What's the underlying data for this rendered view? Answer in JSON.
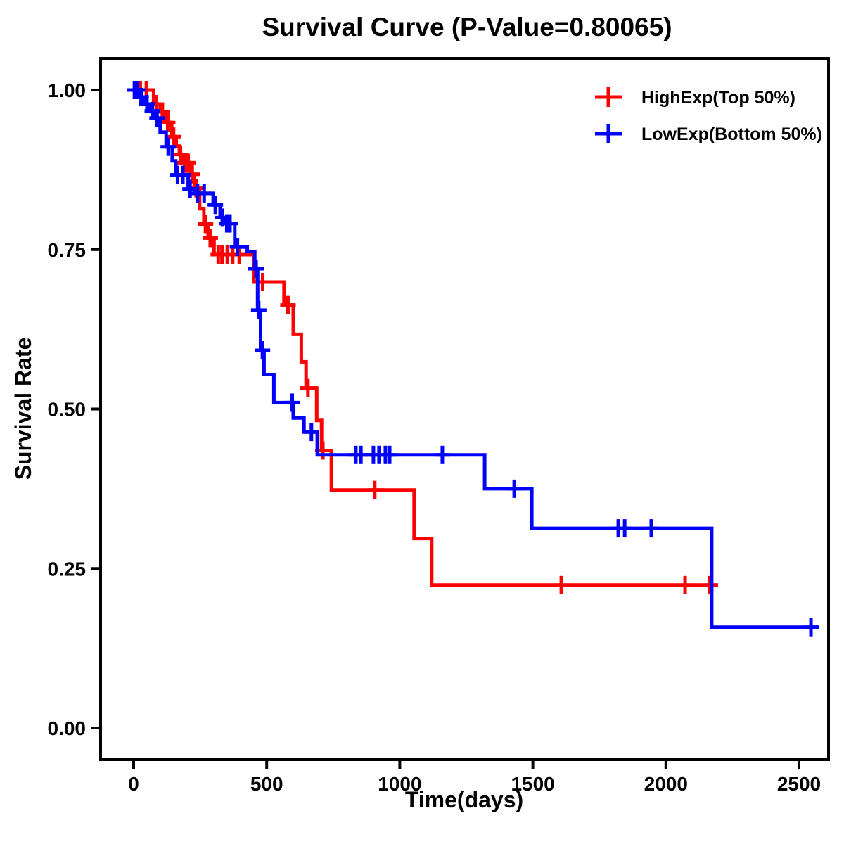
{
  "chart_data": {
    "type": "line",
    "subtype": "kaplan-meier-step-survival",
    "title": "Survival Curve (P-Value=0.80065)",
    "xlabel": "Time(days)",
    "ylabel": "Survival Rate",
    "background": "#FFFFFF",
    "axis_color": "#000000",
    "grid": false,
    "xlim": [
      -125,
      2610
    ],
    "ylim": [
      -0.05,
      1.05
    ],
    "xticks": [
      {
        "value": 0,
        "label": "0"
      },
      {
        "value": 500,
        "label": "500"
      },
      {
        "value": 1000,
        "label": "1000"
      },
      {
        "value": 1500,
        "label": "1500"
      },
      {
        "value": 2000,
        "label": "2000"
      },
      {
        "value": 2500,
        "label": "2500"
      }
    ],
    "yticks": [
      {
        "value": 0.0,
        "label": "0.00"
      },
      {
        "value": 0.25,
        "label": "0.25"
      },
      {
        "value": 0.5,
        "label": "0.50"
      },
      {
        "value": 0.75,
        "label": "0.75"
      },
      {
        "value": 1.0,
        "label": "1.00"
      }
    ],
    "legend": {
      "position": "top-right",
      "marker": "plus-cross"
    },
    "series": [
      {
        "id": "highexp",
        "name": "HighExp(Top 50%)",
        "color": "#FF0000",
        "steps": [
          [
            0,
            1.0
          ],
          [
            75,
            0.978
          ],
          [
            100,
            0.966
          ],
          [
            118,
            0.949
          ],
          [
            143,
            0.927
          ],
          [
            160,
            0.912
          ],
          [
            172,
            0.899
          ],
          [
            185,
            0.886
          ],
          [
            215,
            0.868
          ],
          [
            228,
            0.846
          ],
          [
            248,
            0.814
          ],
          [
            264,
            0.79
          ],
          [
            280,
            0.768
          ],
          [
            302,
            0.742
          ],
          [
            452,
            0.699
          ],
          [
            565,
            0.663
          ],
          [
            600,
            0.617
          ],
          [
            630,
            0.574
          ],
          [
            648,
            0.533
          ],
          [
            688,
            0.482
          ],
          [
            706,
            0.435
          ],
          [
            743,
            0.373
          ],
          [
            1054,
            0.297
          ],
          [
            1120,
            0.224
          ]
        ],
        "end": 2196,
        "censors": [
          [
            25,
            1.0
          ],
          [
            48,
            1.0
          ],
          [
            85,
            0.978
          ],
          [
            108,
            0.966
          ],
          [
            128,
            0.949
          ],
          [
            150,
            0.927
          ],
          [
            176,
            0.899
          ],
          [
            192,
            0.886
          ],
          [
            205,
            0.886
          ],
          [
            220,
            0.868
          ],
          [
            235,
            0.846
          ],
          [
            270,
            0.79
          ],
          [
            288,
            0.768
          ],
          [
            318,
            0.742
          ],
          [
            332,
            0.742
          ],
          [
            352,
            0.742
          ],
          [
            372,
            0.742
          ],
          [
            397,
            0.742
          ],
          [
            485,
            0.699
          ],
          [
            580,
            0.663
          ],
          [
            655,
            0.533
          ],
          [
            711,
            0.435
          ],
          [
            906,
            0.373
          ],
          [
            1607,
            0.224
          ],
          [
            2072,
            0.224
          ],
          [
            2164,
            0.224
          ]
        ]
      },
      {
        "id": "lowexp",
        "name": "LowExp(Bottom 50%)",
        "color": "#0000FF",
        "steps": [
          [
            0,
            1.0
          ],
          [
            20,
            0.989
          ],
          [
            38,
            0.978
          ],
          [
            60,
            0.967
          ],
          [
            80,
            0.956
          ],
          [
            100,
            0.934
          ],
          [
            122,
            0.911
          ],
          [
            145,
            0.889
          ],
          [
            158,
            0.867
          ],
          [
            205,
            0.845
          ],
          [
            228,
            0.838
          ],
          [
            299,
            0.82
          ],
          [
            325,
            0.8
          ],
          [
            342,
            0.791
          ],
          [
            380,
            0.754
          ],
          [
            427,
            0.747
          ],
          [
            455,
            0.72
          ],
          [
            466,
            0.655
          ],
          [
            477,
            0.592
          ],
          [
            490,
            0.554
          ],
          [
            527,
            0.51
          ],
          [
            600,
            0.486
          ],
          [
            640,
            0.464
          ],
          [
            690,
            0.428
          ],
          [
            1319,
            0.375
          ],
          [
            1496,
            0.313
          ],
          [
            2172,
            0.158
          ]
        ],
        "end": 2574,
        "censors": [
          [
            3,
            1.0
          ],
          [
            15,
            1.0
          ],
          [
            28,
            0.989
          ],
          [
            50,
            0.978
          ],
          [
            70,
            0.967
          ],
          [
            88,
            0.956
          ],
          [
            130,
            0.911
          ],
          [
            165,
            0.867
          ],
          [
            185,
            0.867
          ],
          [
            212,
            0.845
          ],
          [
            240,
            0.838
          ],
          [
            265,
            0.838
          ],
          [
            307,
            0.82
          ],
          [
            333,
            0.8
          ],
          [
            350,
            0.791
          ],
          [
            362,
            0.791
          ],
          [
            390,
            0.754
          ],
          [
            460,
            0.72
          ],
          [
            470,
            0.655
          ],
          [
            484,
            0.592
          ],
          [
            596,
            0.51
          ],
          [
            668,
            0.464
          ],
          [
            835,
            0.428
          ],
          [
            854,
            0.428
          ],
          [
            901,
            0.428
          ],
          [
            922,
            0.428
          ],
          [
            946,
            0.428
          ],
          [
            962,
            0.428
          ],
          [
            1160,
            0.428
          ],
          [
            1430,
            0.375
          ],
          [
            1821,
            0.313
          ],
          [
            1845,
            0.313
          ],
          [
            1945,
            0.313
          ],
          [
            2545,
            0.158
          ]
        ]
      }
    ]
  }
}
